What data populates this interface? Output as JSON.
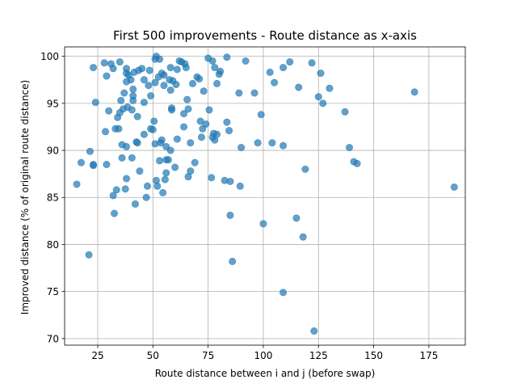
{
  "chart_data": {
    "type": "scatter",
    "title": "First 500 improvements - Route distance as x-axis",
    "xlabel": "Route distance between i and j (before swap)",
    "ylabel": "Improved distance (% of original route distance)",
    "xlim": [
      10,
      191.5
    ],
    "ylim": [
      69.3,
      101.0
    ],
    "xticks": [
      25,
      50,
      75,
      100,
      125,
      150,
      175
    ],
    "yticks": [
      70,
      75,
      80,
      85,
      90,
      95,
      100
    ],
    "grid": true,
    "marker_color": "#1f77b4",
    "marker_alpha": 0.7,
    "points": [
      [
        15.5,
        86.4
      ],
      [
        17.5,
        88.7
      ],
      [
        21.0,
        78.9
      ],
      [
        21.5,
        89.9
      ],
      [
        23.0,
        88.4
      ],
      [
        23.0,
        88.5
      ],
      [
        23.0,
        98.8
      ],
      [
        24.0,
        95.1
      ],
      [
        28.0,
        99.3
      ],
      [
        28.5,
        92.0
      ],
      [
        29.0,
        88.5
      ],
      [
        29.0,
        97.9
      ],
      [
        30.0,
        94.2
      ],
      [
        31.0,
        99.2
      ],
      [
        32.0,
        85.2
      ],
      [
        32.0,
        98.7
      ],
      [
        32.5,
        83.3
      ],
      [
        33.0,
        92.3
      ],
      [
        33.5,
        85.8
      ],
      [
        34.0,
        93.5
      ],
      [
        34.5,
        92.3
      ],
      [
        35.0,
        99.4
      ],
      [
        35.0,
        94.0
      ],
      [
        35.5,
        95.3
      ],
      [
        36.0,
        89.2
      ],
      [
        36.0,
        90.6
      ],
      [
        36.5,
        94.4
      ],
      [
        37.0,
        96.1
      ],
      [
        37.5,
        85.9
      ],
      [
        38.0,
        97.3
      ],
      [
        38.0,
        98.2
      ],
      [
        38.0,
        98.7
      ],
      [
        38.0,
        87.0
      ],
      [
        38.0,
        90.4
      ],
      [
        38.5,
        94.6
      ],
      [
        39.0,
        98.0
      ],
      [
        40.0,
        97.5
      ],
      [
        40.5,
        94.3
      ],
      [
        40.5,
        89.2
      ],
      [
        41.0,
        96.5
      ],
      [
        41.0,
        95.8
      ],
      [
        41.0,
        95.3
      ],
      [
        41.5,
        98.3
      ],
      [
        42.0,
        84.3
      ],
      [
        42.5,
        90.9
      ],
      [
        43.0,
        90.8
      ],
      [
        43.0,
        93.6
      ],
      [
        43.5,
        98.5
      ],
      [
        44.0,
        87.8
      ],
      [
        45.0,
        98.7
      ],
      [
        46.0,
        97.5
      ],
      [
        46.0,
        91.7
      ],
      [
        46.0,
        95.1
      ],
      [
        47.0,
        85.0
      ],
      [
        47.5,
        86.2
      ],
      [
        48.0,
        96.9
      ],
      [
        48.5,
        98.5
      ],
      [
        49.0,
        92.3
      ],
      [
        49.0,
        95.8
      ],
      [
        50.0,
        92.2
      ],
      [
        50.5,
        93.1
      ],
      [
        51.0,
        90.7
      ],
      [
        51.0,
        97.2
      ],
      [
        51.0,
        99.7
      ],
      [
        51.5,
        86.8
      ],
      [
        51.5,
        100.0
      ],
      [
        52.0,
        86.2
      ],
      [
        52.5,
        97.8
      ],
      [
        53.0,
        99.7
      ],
      [
        53.0,
        88.9
      ],
      [
        53.5,
        90.8
      ],
      [
        54.0,
        98.2
      ],
      [
        54.0,
        91.1
      ],
      [
        54.5,
        85.5
      ],
      [
        55.0,
        96.9
      ],
      [
        55.0,
        98.0
      ],
      [
        55.5,
        86.9
      ],
      [
        56.0,
        87.6
      ],
      [
        56.0,
        89.0
      ],
      [
        56.0,
        90.4
      ],
      [
        57.0,
        89.0
      ],
      [
        57.5,
        97.5
      ],
      [
        58.0,
        90.0
      ],
      [
        58.0,
        96.4
      ],
      [
        58.0,
        98.8
      ],
      [
        58.5,
        94.3
      ],
      [
        58.5,
        94.5
      ],
      [
        59.0,
        97.4
      ],
      [
        60.0,
        88.2
      ],
      [
        60.5,
        97.0
      ],
      [
        61.0,
        91.2
      ],
      [
        61.0,
        98.6
      ],
      [
        62.0,
        99.5
      ],
      [
        63.0,
        99.4
      ],
      [
        64.0,
        92.5
      ],
      [
        64.0,
        93.9
      ],
      [
        64.5,
        99.2
      ],
      [
        65.0,
        98.8
      ],
      [
        65.5,
        95.4
      ],
      [
        66.0,
        87.2
      ],
      [
        66.0,
        94.4
      ],
      [
        67.0,
        87.8
      ],
      [
        67.0,
        90.8
      ],
      [
        68.0,
        97.1
      ],
      [
        69.0,
        88.7
      ],
      [
        70.0,
        97.8
      ],
      [
        71.0,
        97.6
      ],
      [
        71.5,
        93.1
      ],
      [
        72.0,
        91.4
      ],
      [
        72.5,
        92.3
      ],
      [
        73.0,
        96.3
      ],
      [
        74.0,
        92.8
      ],
      [
        75.0,
        99.8
      ],
      [
        75.5,
        94.3
      ],
      [
        76.5,
        87.1
      ],
      [
        77.0,
        91.4
      ],
      [
        77.0,
        99.5
      ],
      [
        77.5,
        91.8
      ],
      [
        78.0,
        98.8
      ],
      [
        78.0,
        91.1
      ],
      [
        79.0,
        97.1
      ],
      [
        79.0,
        91.7
      ],
      [
        80.0,
        98.1
      ],
      [
        80.5,
        98.4
      ],
      [
        82.5,
        86.8
      ],
      [
        83.5,
        99.9
      ],
      [
        83.5,
        93.0
      ],
      [
        84.5,
        92.1
      ],
      [
        85.0,
        86.7
      ],
      [
        85.0,
        83.1
      ],
      [
        86.0,
        78.2
      ],
      [
        89.0,
        96.1
      ],
      [
        89.5,
        86.2
      ],
      [
        90.0,
        90.3
      ],
      [
        92.0,
        99.5
      ],
      [
        96.0,
        96.1
      ],
      [
        97.5,
        90.8
      ],
      [
        99.0,
        93.8
      ],
      [
        100.0,
        82.2
      ],
      [
        103.0,
        98.3
      ],
      [
        104.0,
        90.8
      ],
      [
        105.0,
        97.2
      ],
      [
        109.0,
        98.8
      ],
      [
        109.0,
        74.9
      ],
      [
        109.0,
        90.5
      ],
      [
        112.0,
        99.4
      ],
      [
        115.0,
        82.8
      ],
      [
        116.0,
        96.7
      ],
      [
        118.0,
        80.8
      ],
      [
        119.0,
        88.0
      ],
      [
        122.0,
        99.3
      ],
      [
        123.0,
        70.8
      ],
      [
        125.0,
        95.7
      ],
      [
        126.0,
        98.2
      ],
      [
        127.0,
        95.0
      ],
      [
        130.0,
        96.6
      ],
      [
        137.0,
        94.1
      ],
      [
        139.0,
        90.3
      ],
      [
        141.0,
        88.8
      ],
      [
        142.5,
        88.6
      ],
      [
        168.5,
        96.2
      ],
      [
        186.5,
        86.1
      ]
    ]
  }
}
